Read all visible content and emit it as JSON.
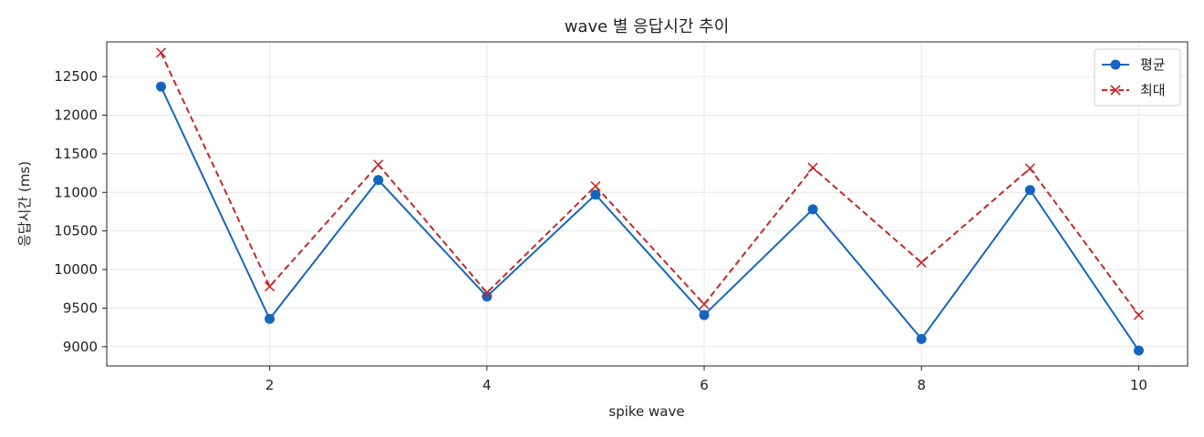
{
  "chart_data": {
    "type": "line",
    "title": "wave 별 응답시간 추이",
    "xlabel": "spike wave",
    "ylabel": "응답시간 (ms)",
    "x": [
      1,
      2,
      3,
      4,
      5,
      6,
      7,
      8,
      9,
      10
    ],
    "xlim": [
      0.5,
      10.45
    ],
    "ylim": [
      8750,
      12950
    ],
    "x_ticks": [
      2,
      4,
      6,
      8,
      10
    ],
    "y_ticks": [
      9000,
      9500,
      10000,
      10500,
      11000,
      11500,
      12000,
      12500
    ],
    "grid": true,
    "legend_position": "top-right",
    "series": [
      {
        "name": "평균",
        "color": "#1565c0",
        "line_style": "solid",
        "marker": "circle",
        "values": [
          12370,
          9360,
          11160,
          9650,
          10970,
          9410,
          10780,
          9100,
          11030,
          8950
        ]
      },
      {
        "name": "최대",
        "color": "#c62828",
        "line_style": "dashed",
        "marker": "x",
        "values": [
          12810,
          9780,
          11360,
          9700,
          11080,
          9550,
          11320,
          10090,
          11310,
          9410
        ]
      }
    ]
  }
}
